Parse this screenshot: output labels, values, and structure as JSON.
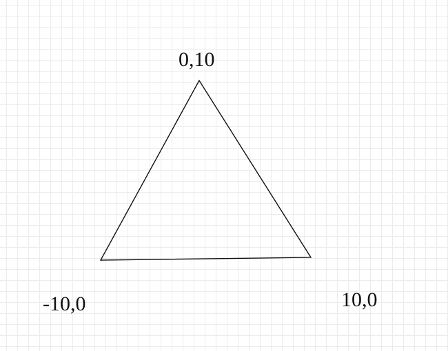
{
  "diagram": {
    "vertices": {
      "top": {
        "label": "0,10"
      },
      "left": {
        "label": "-10,0"
      },
      "right": {
        "label": "10,0"
      }
    },
    "colors": {
      "stroke": "#111111",
      "grid": "#ececec",
      "text": "#111111",
      "background": "#ffffff"
    }
  }
}
